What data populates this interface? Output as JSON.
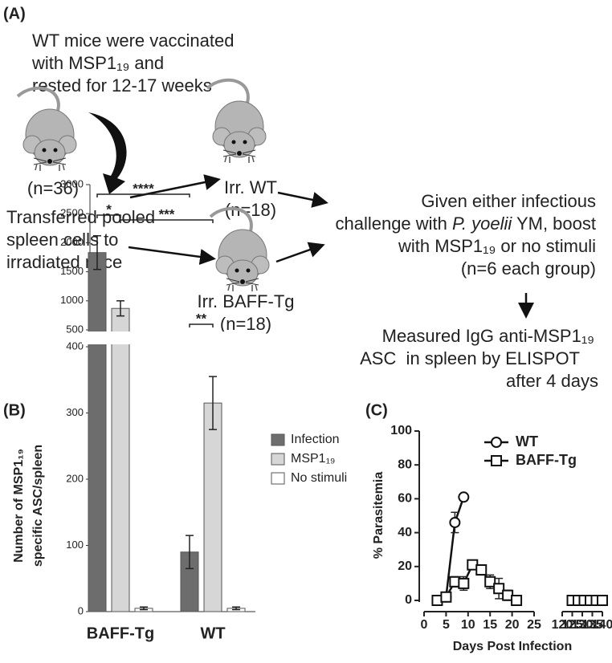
{
  "panel_a": {
    "label": "(A)",
    "intro": [
      "WT mice were vaccinated",
      "with MSP1₁₉ and",
      "rested for 12-17 weeks"
    ],
    "donor_n": "(n=36)",
    "transfer": [
      "Transferred pooled",
      "spleen cells to",
      "irradiated mice"
    ],
    "recipients": [
      {
        "label": "Irr. WT",
        "n": "(n=18)"
      },
      {
        "label": "Irr. BAFF-Tg",
        "n": "(n=18)"
      }
    ],
    "challenge": [
      "Given either infectious",
      "with MSP1₁₉ or no stimuli",
      "(n=6 each group)"
    ],
    "challenge_parts": [
      "challenge with ",
      "P. yoelii",
      " YM, boost"
    ],
    "readout": [
      "Measured IgG anti-MSP1₁₉",
      "ASC  in spleen by ELISPOT",
      "after 4 days"
    ]
  },
  "chart_data": [
    {
      "type": "bar",
      "panel": "(B)",
      "ylabel": [
        "Number of MSP1₁₉",
        "specific ASC/spleen"
      ],
      "categories": [
        "BAFF-Tg",
        "WT"
      ],
      "series": [
        {
          "name": "Infection",
          "color": "#6d6d6d",
          "values": [
            1830,
            90
          ],
          "errors": [
            290,
            25
          ]
        },
        {
          "name": "MSP1₁₉",
          "color": "#d6d6d6",
          "values": [
            870,
            315
          ],
          "errors": [
            130,
            40
          ]
        },
        {
          "name": "No stimuli",
          "color": "#ffffff",
          "values": [
            5,
            5
          ],
          "errors": [
            2,
            2
          ]
        }
      ],
      "ylim": [
        0,
        3000
      ],
      "ybreak": [
        400,
        500
      ],
      "yticks": [
        0,
        100,
        200,
        300,
        400,
        500,
        1000,
        1500,
        2000,
        2500,
        3000
      ],
      "annotations": [
        "*",
        "****",
        "***",
        "**"
      ]
    },
    {
      "type": "line",
      "panel": "(C)",
      "ylabel": "% Parasitemia",
      "xlabel": "Days Post Infection",
      "series": [
        {
          "name": "WT",
          "color": "#111111",
          "marker": "circle",
          "x": [
            3,
            5,
            7,
            9
          ],
          "values": [
            0,
            2,
            46,
            61
          ],
          "errors": [
            0,
            1,
            6,
            0
          ]
        },
        {
          "name": "BAFF-Tg",
          "color": "#111111",
          "marker": "square",
          "x": [
            3,
            5,
            7,
            9,
            11,
            13,
            15,
            17,
            19,
            21,
            125,
            128,
            131,
            134,
            137,
            140
          ],
          "values": [
            0,
            2,
            11,
            10,
            21,
            18,
            11,
            7,
            3,
            0,
            0,
            0,
            0,
            0,
            0,
            0
          ],
          "errors": [
            0,
            1,
            3,
            4,
            2,
            3,
            4,
            6,
            3,
            0,
            0,
            0,
            0,
            0,
            0,
            0
          ]
        }
      ],
      "xlim": [
        0,
        140
      ],
      "xbreak": [
        25,
        120
      ],
      "xticks": [
        0,
        5,
        10,
        15,
        20,
        25,
        120,
        125,
        130,
        135,
        140
      ],
      "ylim": [
        0,
        100
      ],
      "yticks": [
        0,
        20,
        40,
        60,
        80,
        100
      ]
    }
  ]
}
